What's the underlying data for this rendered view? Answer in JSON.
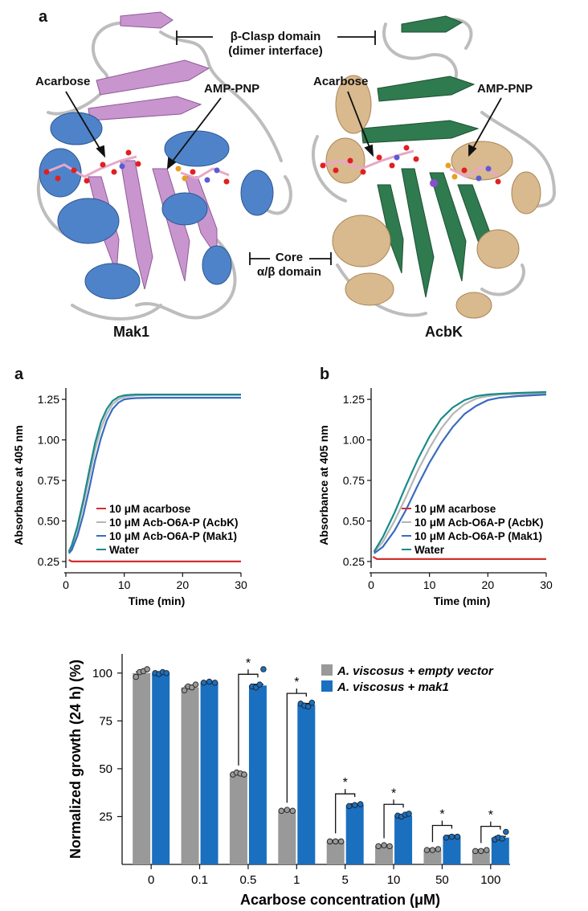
{
  "figure_top": {
    "panel_letter": "a",
    "domain_top_line1": "β-Clasp domain",
    "domain_top_line2": "(dimer interface)",
    "domain_mid_line1": "Core",
    "domain_mid_line2": "α/β domain",
    "left": {
      "name": "Mak1",
      "ligand1": "Acarbose",
      "ligand2": "AMP-PNP"
    },
    "right": {
      "name": "AcbK",
      "ligand1": "Acarbose",
      "ligand2": "AMP-PNP"
    },
    "colors": {
      "mak1_helix": "#4f83c9",
      "mak1_sheet": "#c995cf",
      "acbk_helix": "#d9b98e",
      "acbk_sheet": "#2f7a4f",
      "loop": "#b9b9b9"
    }
  },
  "chart_data": [
    {
      "panel": "a",
      "type": "line",
      "xlabel": "Time (min)",
      "ylabel": "Absorbance at 405 nm",
      "xlim": [
        0,
        30
      ],
      "ylim": [
        0.22,
        1.32
      ],
      "xticks": [
        "0",
        "10",
        "20",
        "30"
      ],
      "yticks": [
        "0.25",
        "0.50",
        "0.75",
        "1.00",
        "1.25"
      ],
      "legend": [
        "10 μM acarbose",
        "10 μM Acb-O6A-P (AcbK)",
        "10 μM Acb-O6A-P (Mak1)",
        "Water"
      ],
      "series": [
        {
          "name": "10 μM acarbose",
          "color": "#d0312d",
          "x": [
            0.5,
            1,
            2,
            5,
            10,
            20,
            30
          ],
          "y": [
            0.26,
            0.25,
            0.25,
            0.25,
            0.25,
            0.25,
            0.25
          ]
        },
        {
          "name": "10 μM Acb-O6A-P (AcbK)",
          "color": "#b5b5b5",
          "x": [
            0.5,
            1,
            2,
            3,
            4,
            5,
            6,
            7,
            8,
            9,
            10,
            11,
            12,
            15,
            20,
            30
          ],
          "y": [
            0.31,
            0.34,
            0.45,
            0.6,
            0.77,
            0.94,
            1.07,
            1.16,
            1.22,
            1.25,
            1.265,
            1.27,
            1.275,
            1.277,
            1.277,
            1.277
          ]
        },
        {
          "name": "10 μM Acb-O6A-P (Mak1)",
          "color": "#3a6bbf",
          "x": [
            0.5,
            1,
            2,
            3,
            4,
            5,
            6,
            7,
            8,
            9,
            10,
            11,
            12,
            15,
            20,
            30
          ],
          "y": [
            0.3,
            0.32,
            0.41,
            0.54,
            0.7,
            0.87,
            1.01,
            1.12,
            1.19,
            1.23,
            1.25,
            1.255,
            1.258,
            1.26,
            1.26,
            1.26
          ]
        },
        {
          "name": "Water",
          "color": "#1a8a8a",
          "x": [
            0.5,
            1,
            2,
            3,
            4,
            5,
            6,
            7,
            8,
            9,
            10,
            11,
            12,
            15,
            20,
            30
          ],
          "y": [
            0.31,
            0.35,
            0.47,
            0.63,
            0.81,
            0.98,
            1.11,
            1.19,
            1.24,
            1.265,
            1.275,
            1.278,
            1.28,
            1.28,
            1.28,
            1.28
          ]
        }
      ]
    },
    {
      "panel": "b",
      "type": "line",
      "xlabel": "Time (min)",
      "ylabel": "Absorbance at 405 nm",
      "xlim": [
        0,
        30
      ],
      "ylim": [
        0.22,
        1.32
      ],
      "xticks": [
        "0",
        "10",
        "20",
        "30"
      ],
      "yticks": [
        "0.25",
        "0.50",
        "0.75",
        "1.00",
        "1.25"
      ],
      "legend": [
        "10 μM acarbose",
        "10 μM Acb-O6A-P (AcbK)",
        "10 μM Acb-O6A-P (Mak1)",
        "Water"
      ],
      "series": [
        {
          "name": "10 μM acarbose",
          "color": "#d0312d",
          "x": [
            0.3,
            1,
            2,
            5,
            10,
            20,
            30
          ],
          "y": [
            0.28,
            0.265,
            0.265,
            0.265,
            0.265,
            0.265,
            0.265
          ]
        },
        {
          "name": "10 μM Acb-O6A-P (AcbK)",
          "color": "#b5b5b5",
          "x": [
            0.5,
            2,
            4,
            6,
            8,
            10,
            12,
            14,
            16,
            18,
            20,
            22,
            25,
            30
          ],
          "y": [
            0.31,
            0.37,
            0.5,
            0.65,
            0.81,
            0.95,
            1.07,
            1.16,
            1.22,
            1.255,
            1.27,
            1.28,
            1.283,
            1.285
          ]
        },
        {
          "name": "10 μM Acb-O6A-P (Mak1)",
          "color": "#3a6bbf",
          "x": [
            0.5,
            2,
            4,
            6,
            8,
            10,
            12,
            14,
            16,
            18,
            20,
            22,
            25,
            30
          ],
          "y": [
            0.3,
            0.34,
            0.44,
            0.57,
            0.72,
            0.86,
            0.98,
            1.08,
            1.16,
            1.21,
            1.245,
            1.26,
            1.27,
            1.28
          ]
        },
        {
          "name": "Water",
          "color": "#1a8a8a",
          "x": [
            0.5,
            2,
            4,
            6,
            8,
            10,
            12,
            14,
            16,
            18,
            20,
            22,
            25,
            30
          ],
          "y": [
            0.31,
            0.4,
            0.55,
            0.72,
            0.88,
            1.02,
            1.13,
            1.2,
            1.245,
            1.27,
            1.28,
            1.285,
            1.29,
            1.295
          ]
        }
      ]
    },
    {
      "type": "bar",
      "xlabel": "Acarbose concentration (μM)",
      "ylabel": "Normalized growth (24 h) (%)",
      "ylim": [
        0,
        110
      ],
      "yticks": [
        "25",
        "50",
        "75",
        "100"
      ],
      "categories": [
        "0",
        "0.1",
        "0.5",
        "1",
        "5",
        "10",
        "50",
        "100"
      ],
      "series": [
        {
          "name": "A. viscosus + empty vector",
          "color": "#999999",
          "values": [
            100,
            92.5,
            47.5,
            28,
            12,
            9.5,
            7.5,
            7
          ]
        },
        {
          "name": "A. viscosus + mak1",
          "color": "#1a6fbf",
          "values": [
            100,
            95,
            93.5,
            83.5,
            31,
            25.5,
            14.5,
            14
          ]
        }
      ],
      "points": [
        [
          [
            98,
            100.5,
            101,
            102
          ],
          [
            100,
            99.5,
            100.5,
            100
          ]
        ],
        [
          [
            91,
            93,
            92.5,
            94
          ],
          [
            95,
            95.5,
            95
          ]
        ],
        [
          [
            47,
            48,
            47.5,
            47
          ],
          [
            93,
            92.5,
            94,
            102
          ]
        ],
        [
          [
            28,
            28.5,
            28
          ],
          [
            84,
            83,
            82.5,
            84.5
          ]
        ],
        [
          [
            12,
            12,
            12
          ],
          [
            30.5,
            31,
            31.5
          ]
        ],
        [
          [
            9.5,
            10,
            9.5
          ],
          [
            25.5,
            25,
            26,
            26.5
          ]
        ],
        [
          [
            7.5,
            7.5,
            8
          ],
          [
            14,
            14.5,
            14.5
          ]
        ],
        [
          [
            7,
            7,
            7.5
          ],
          [
            13,
            14,
            13.5,
            17
          ]
        ]
      ],
      "significance": [
        "",
        "",
        "*",
        "*",
        "*",
        "*",
        "*",
        "*"
      ]
    }
  ]
}
